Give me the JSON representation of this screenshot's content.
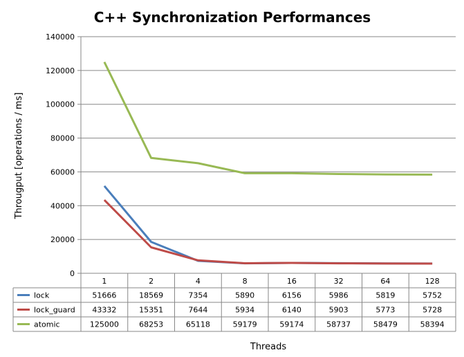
{
  "chart_data": {
    "type": "line",
    "title": "C++ Synchronization Performances",
    "xlabel": "Threads",
    "ylabel": "Througput [operations / ms]",
    "categories": [
      "1",
      "2",
      "4",
      "8",
      "16",
      "32",
      "64",
      "128"
    ],
    "ylim": [
      0,
      140000
    ],
    "yticks": [
      "0",
      "20000",
      "40000",
      "60000",
      "80000",
      "100000",
      "120000",
      "140000"
    ],
    "grid": true,
    "legend": "data-table",
    "series": [
      {
        "name": "lock",
        "color": "#4a7ebb",
        "values": [
          51666,
          18569,
          7354,
          5890,
          6156,
          5986,
          5819,
          5752
        ]
      },
      {
        "name": "lock_guard",
        "color": "#be4b48",
        "values": [
          43332,
          15351,
          7644,
          5934,
          6140,
          5903,
          5773,
          5728
        ]
      },
      {
        "name": "atomic",
        "color": "#98b954",
        "values": [
          125000,
          68253,
          65118,
          59179,
          59174,
          58737,
          58479,
          58394
        ]
      }
    ]
  }
}
